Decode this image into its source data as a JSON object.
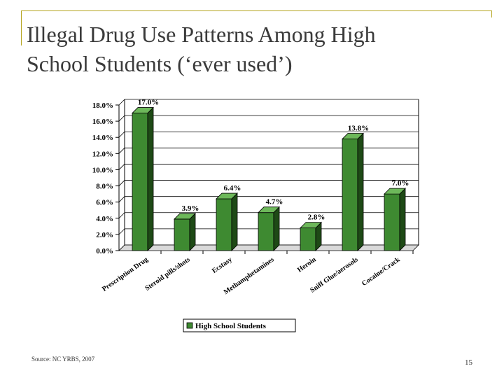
{
  "slide": {
    "title_line1": "Illegal Drug Use Patterns Among High",
    "title_line2": "School Students (‘ever used’)",
    "source": "Source: NC YRBS, 2007",
    "page_number": "15"
  },
  "colors": {
    "bar_front": "#3e8a31",
    "bar_side": "#1e4a16",
    "bar_top": "#6db85a",
    "frame": "#b4a41e"
  },
  "chart_data": {
    "type": "bar",
    "title": "",
    "xlabel": "",
    "ylabel": "",
    "categories": [
      "Prescription Drug",
      "Steroid pills/shots",
      "Ecstasy",
      "Methamphetamines",
      "Heroin",
      "Sniff Glue/aerosols",
      "Cocaine/Crack"
    ],
    "series": [
      {
        "name": "High School Students",
        "values": [
          17.0,
          3.9,
          6.4,
          4.7,
          2.8,
          13.8,
          7.0
        ],
        "labels": [
          "17.0%",
          "3.9%",
          "6.4%",
          "4.7%",
          "2.8%",
          "13.8%",
          "7.0%"
        ]
      }
    ],
    "yticks": [
      "0.0%",
      "2.0%",
      "4.0%",
      "6.0%",
      "8.0%",
      "10.0%",
      "12.0%",
      "14.0%",
      "16.0%",
      "18.0%"
    ],
    "ylim": [
      0,
      18
    ],
    "grid": true,
    "legend_position": "bottom"
  }
}
